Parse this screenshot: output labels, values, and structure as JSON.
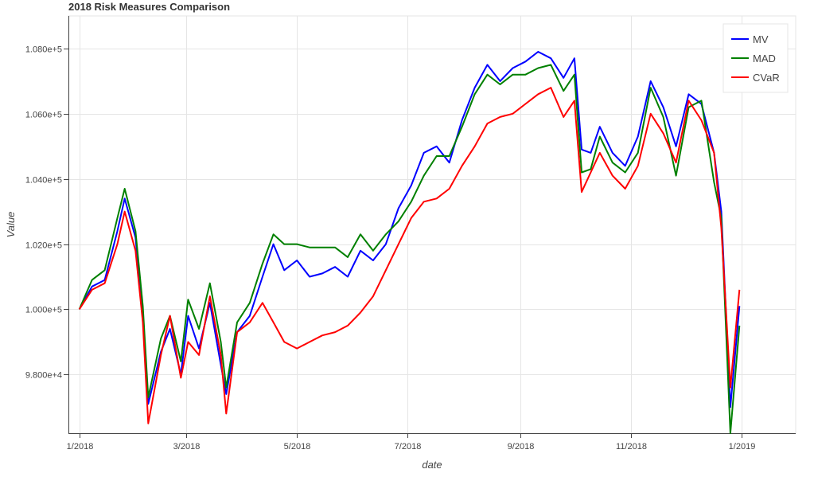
{
  "chart_data": {
    "type": "line",
    "title": "2018 Risk Measures Comparison",
    "xlabel": "date",
    "ylabel": "Value",
    "xlim": [
      "2017-12-26",
      "2019-01-31"
    ],
    "ylim": [
      96200,
      109000
    ],
    "grid": true,
    "legend_position": "top-right",
    "x_ticks": [
      {
        "date": "2018-01-01",
        "label": "1/2018"
      },
      {
        "date": "2018-03-01",
        "label": "3/2018"
      },
      {
        "date": "2018-05-01",
        "label": "5/2018"
      },
      {
        "date": "2018-07-01",
        "label": "7/2018"
      },
      {
        "date": "2018-09-01",
        "label": "9/2018"
      },
      {
        "date": "2018-11-01",
        "label": "11/2018"
      },
      {
        "date": "2019-01-01",
        "label": "1/2019"
      }
    ],
    "y_ticks": [
      {
        "value": 98000,
        "label": "9.800e+4"
      },
      {
        "value": 100000,
        "label": "1.000e+5"
      },
      {
        "value": 102000,
        "label": "1.020e+5"
      },
      {
        "value": 104000,
        "label": "1.040e+5"
      },
      {
        "value": 106000,
        "label": "1.060e+5"
      },
      {
        "value": 108000,
        "label": "1.080e+5"
      }
    ],
    "x": [
      "2018-01-01",
      "2018-01-08",
      "2018-01-15",
      "2018-01-22",
      "2018-01-26",
      "2018-02-01",
      "2018-02-05",
      "2018-02-08",
      "2018-02-15",
      "2018-02-20",
      "2018-02-26",
      "2018-03-02",
      "2018-03-08",
      "2018-03-14",
      "2018-03-20",
      "2018-03-23",
      "2018-03-29",
      "2018-04-05",
      "2018-04-12",
      "2018-04-18",
      "2018-04-24",
      "2018-05-01",
      "2018-05-08",
      "2018-05-15",
      "2018-05-22",
      "2018-05-29",
      "2018-06-05",
      "2018-06-12",
      "2018-06-19",
      "2018-06-26",
      "2018-07-03",
      "2018-07-10",
      "2018-07-17",
      "2018-07-24",
      "2018-07-31",
      "2018-08-07",
      "2018-08-14",
      "2018-08-21",
      "2018-08-28",
      "2018-09-04",
      "2018-09-11",
      "2018-09-18",
      "2018-09-25",
      "2018-10-01",
      "2018-10-05",
      "2018-10-10",
      "2018-10-15",
      "2018-10-22",
      "2018-10-29",
      "2018-11-05",
      "2018-11-12",
      "2018-11-19",
      "2018-11-26",
      "2018-12-03",
      "2018-12-10",
      "2018-12-17",
      "2018-12-21",
      "2018-12-26",
      "2018-12-31"
    ],
    "series": [
      {
        "name": "MV",
        "color": "#0000ff",
        "values": [
          100000,
          100700,
          100900,
          102400,
          103400,
          102200,
          99800,
          97100,
          98700,
          99400,
          98000,
          99800,
          98800,
          100200,
          98300,
          97400,
          99300,
          99800,
          101000,
          102000,
          101200,
          101500,
          101000,
          101100,
          101300,
          101000,
          101800,
          101500,
          102000,
          103100,
          103800,
          104800,
          105000,
          104500,
          105800,
          106800,
          107500,
          107000,
          107400,
          107600,
          107900,
          107700,
          107100,
          107700,
          104900,
          104800,
          105600,
          104800,
          104400,
          105300,
          107000,
          106200,
          105000,
          106600,
          106300,
          104800,
          103000,
          97000,
          100100
        ]
      },
      {
        "name": "MAD",
        "color": "#008000",
        "values": [
          100000,
          100900,
          101200,
          102800,
          103700,
          102400,
          100100,
          97300,
          99100,
          99800,
          98400,
          100300,
          99400,
          100800,
          99000,
          97600,
          99600,
          100200,
          101400,
          102300,
          102000,
          102000,
          101900,
          101900,
          101900,
          101600,
          102300,
          101800,
          102300,
          102700,
          103300,
          104100,
          104700,
          104700,
          105600,
          106600,
          107200,
          106900,
          107200,
          107200,
          107400,
          107500,
          106700,
          107200,
          104200,
          104300,
          105300,
          104500,
          104200,
          104800,
          106800,
          105900,
          104100,
          106200,
          106400,
          103900,
          102800,
          96200,
          99500
        ]
      },
      {
        "name": "CVaR",
        "color": "#ff0000",
        "values": [
          100000,
          100600,
          100800,
          102000,
          103000,
          101800,
          99600,
          96500,
          98600,
          99800,
          97900,
          99000,
          98600,
          100400,
          98600,
          96800,
          99300,
          99600,
          100200,
          99600,
          99000,
          98800,
          99000,
          99200,
          99300,
          99500,
          99900,
          100400,
          101200,
          102000,
          102800,
          103300,
          103400,
          103700,
          104400,
          105000,
          105700,
          105900,
          106000,
          106300,
          106600,
          106800,
          105900,
          106400,
          103600,
          104200,
          104800,
          104100,
          103700,
          104400,
          106000,
          105400,
          104500,
          106400,
          105800,
          104800,
          102500,
          97600,
          100600
        ]
      }
    ]
  }
}
